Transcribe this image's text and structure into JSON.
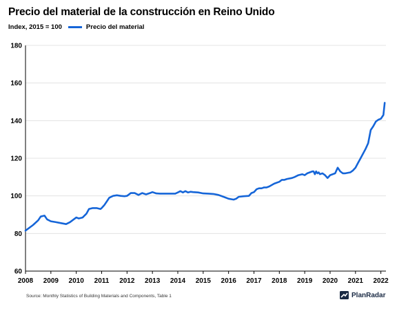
{
  "header": {
    "title": "Precio del material de la construcción en Reino Unido",
    "index_label": "Index, 2015 = 100",
    "legend_label": "Precio del material"
  },
  "footer": {
    "source": "Source: Monthly Statistics of Building Materials and Components, Table 1",
    "brand": "PlanRadar"
  },
  "colors": {
    "series": "#1565d8",
    "axis": "#000000",
    "grid": "#dddddd"
  },
  "chart_data": {
    "type": "line",
    "title": "Precio del material de la construcción en Reino Unido",
    "ylabel": "Index, 2015 = 100",
    "xlabel": "",
    "xlim": [
      2008,
      2022.2
    ],
    "ylim": [
      60,
      180
    ],
    "x_ticks": [
      "2008",
      "2009",
      "2010",
      "2011",
      "2012",
      "2013",
      "2014",
      "2015",
      "2016",
      "2017",
      "2018",
      "2019",
      "2020",
      "2021",
      "2022"
    ],
    "y_ticks": [
      "60",
      "80",
      "100",
      "120",
      "140",
      "160",
      "180"
    ],
    "grid": "horizontal",
    "legend": "top-left",
    "series": [
      {
        "name": "Precio del material",
        "x": [
          2008.0,
          2008.3,
          2008.5,
          2008.6,
          2008.75,
          2008.85,
          2009.0,
          2009.2,
          2009.4,
          2009.6,
          2009.75,
          2009.9,
          2010.0,
          2010.1,
          2010.25,
          2010.4,
          2010.5,
          2010.65,
          2010.8,
          2010.95,
          2011.0,
          2011.1,
          2011.2,
          2011.3,
          2011.45,
          2011.6,
          2011.75,
          2011.9,
          2012.0,
          2012.15,
          2012.3,
          2012.45,
          2012.6,
          2012.75,
          2012.9,
          2013.0,
          2013.15,
          2013.3,
          2013.5,
          2013.7,
          2013.9,
          2014.0,
          2014.1,
          2014.2,
          2014.3,
          2014.4,
          2014.5,
          2014.6,
          2014.8,
          2015.0,
          2015.2,
          2015.4,
          2015.6,
          2015.8,
          2016.0,
          2016.2,
          2016.3,
          2016.4,
          2016.6,
          2016.8,
          2016.9,
          2017.0,
          2017.1,
          2017.2,
          2017.3,
          2017.4,
          2017.5,
          2017.6,
          2017.8,
          2018.0,
          2018.1,
          2018.2,
          2018.3,
          2018.5,
          2018.6,
          2018.75,
          2018.9,
          2019.0,
          2019.1,
          2019.2,
          2019.3,
          2019.35,
          2019.4,
          2019.45,
          2019.5,
          2019.55,
          2019.6,
          2019.7,
          2019.8,
          2019.9,
          2020.0,
          2020.2,
          2020.3,
          2020.4,
          2020.5,
          2020.6,
          2020.8,
          2020.9,
          2021.0,
          2021.1,
          2021.2,
          2021.4,
          2021.5,
          2021.6,
          2021.7,
          2021.8,
          2021.9,
          2022.0,
          2022.1,
          2022.15
        ],
        "values": [
          81.5,
          84.5,
          87,
          89,
          89.5,
          87.5,
          86.5,
          86,
          85.5,
          85,
          86,
          87.5,
          88.5,
          88,
          88.5,
          90.5,
          93,
          93.5,
          93.5,
          93,
          93.5,
          95,
          97,
          99,
          100,
          100.3,
          100,
          99.8,
          100,
          101.5,
          101.5,
          100.5,
          101.5,
          100.8,
          101.5,
          102,
          101.3,
          101.2,
          101.2,
          101.2,
          101.2,
          101.8,
          102.5,
          101.8,
          102.5,
          101.8,
          102.2,
          102,
          101.8,
          101.3,
          101.2,
          101,
          100.5,
          99.5,
          98.5,
          98,
          98.5,
          99.5,
          99.8,
          100,
          101.5,
          102,
          103.5,
          104,
          104,
          104.5,
          104.5,
          105,
          106.5,
          107.5,
          108.5,
          108.5,
          109,
          109.5,
          110,
          111,
          111.5,
          111,
          112,
          112.5,
          113,
          113,
          111.5,
          113,
          112,
          112.5,
          111.5,
          112,
          111,
          109.5,
          111,
          112,
          115,
          113,
          112,
          112,
          112.5,
          113.5,
          115,
          117.5,
          120,
          125,
          128,
          135,
          137,
          139.5,
          140.5,
          141,
          143,
          149.5
        ]
      }
    ]
  }
}
